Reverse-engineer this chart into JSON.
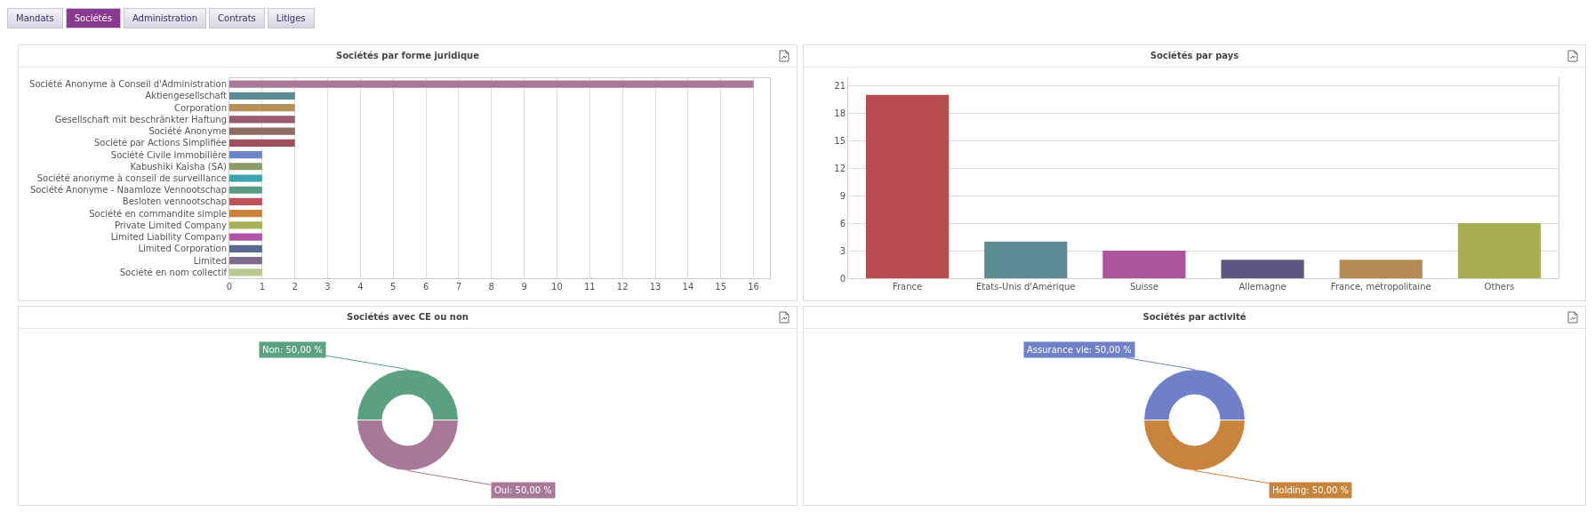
{
  "chart_data": [
    {
      "type": "other",
      "annotations": [
        "Mandats",
        "Sociétés",
        "Administration",
        "Contrats",
        "Litiges"
      ]
    },
    {
      "type": "bar",
      "title": "Sociétés par forme juridique",
      "orientation": "horizontal",
      "categories": [
        "Société Anonyme à Conseil d'Administration",
        "Aktiengesellschaft",
        "Corporation",
        "Gesellschaft mit beschränkter Haftung",
        "Société Anonyme",
        "Société par Actions Simplifiée",
        "Société Civile Immobilière",
        "Kabushiki Kaisha (SA)",
        "Société anonyme à conseil de surveillance",
        "Société Anonyme - Naamloze Vennootschap",
        "Besloten vennootschap",
        "Société en commandite simple",
        "Private Limited Company",
        "Limited Liability Company",
        "Limited Corporation",
        "Limited",
        "Société en nom collectif"
      ],
      "values": [
        16,
        2,
        2,
        2,
        2,
        2,
        1,
        1,
        1,
        1,
        1,
        1,
        1,
        1,
        1,
        1,
        1
      ],
      "colors": [
        "#a87898",
        "#5b8a92",
        "#b5915a",
        "#9a5a70",
        "#8f6a5e",
        "#a0505c",
        "#6f84c8",
        "#8a9a68",
        "#3fa3b0",
        "#5b9a85",
        "#c05058",
        "#c8843c",
        "#a8b058",
        "#b055a8",
        "#5a6890",
        "#806a90",
        "#b8c890"
      ],
      "xlim": [
        0,
        16.5
      ],
      "xticks": [
        0,
        1,
        2,
        3,
        4,
        5,
        6,
        7,
        8,
        9,
        10,
        11,
        12,
        13,
        14,
        15,
        16
      ],
      "grid": "x",
      "legend": false
    },
    {
      "type": "bar",
      "title": "Sociétés par pays",
      "categories": [
        "France",
        "Etats-Unis d'Amérique",
        "Suisse",
        "Allemagne",
        "France, métropolitaine",
        "Others"
      ],
      "values": [
        20,
        4,
        3,
        2,
        2,
        6
      ],
      "colors": [
        "#b94c50",
        "#5e8a94",
        "#ac549e",
        "#5e5580",
        "#b38b52",
        "#a8ae54"
      ],
      "ylim": [
        0,
        22
      ],
      "yticks": [
        0,
        3,
        6,
        9,
        12,
        15,
        18,
        21
      ],
      "grid": "y",
      "legend": false
    },
    {
      "type": "donut",
      "title": "Sociétés avec CE ou non",
      "categories": [
        "Non",
        "Oui"
      ],
      "values": [
        50,
        50
      ],
      "colors": [
        "#5ba080",
        "#a87898"
      ],
      "value_labels": [
        "50,00 %",
        "50,00 %"
      ],
      "legend": false
    },
    {
      "type": "donut",
      "title": "Sociétés par activité",
      "categories": [
        "Assurance vie",
        "Holding"
      ],
      "values": [
        50,
        50
      ],
      "colors": [
        "#6f80c8",
        "#c8843c"
      ],
      "value_labels": [
        "50,00 %",
        "50,00 %"
      ],
      "legend": false
    }
  ]
}
